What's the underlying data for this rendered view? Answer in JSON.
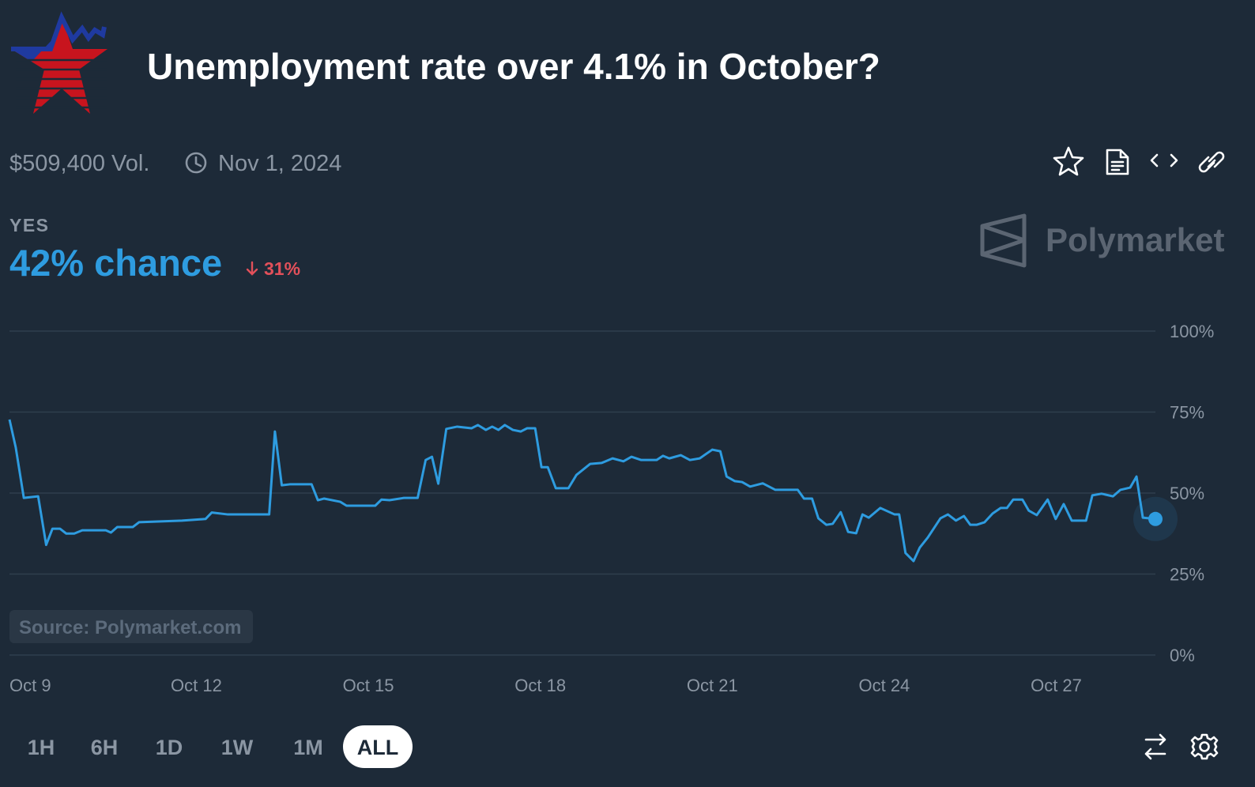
{
  "header": {
    "title": "Unemployment rate over 4.1% in October?",
    "volume": "$509,400 Vol.",
    "end_date": "Nov 1, 2024",
    "outcome": "YES",
    "change": "31%",
    "brand": "Polymarket",
    "source": "Source: Polymarket.com"
  },
  "chart_data": {
    "type": "line",
    "color": "#2e9ce0",
    "grid": true,
    "current": {
      "value": 42,
      "label": "42% chance"
    },
    "xlim": [
      8.74,
      28.73
    ],
    "ylim": [
      0,
      100
    ],
    "xticks": [
      {
        "value": 9,
        "label": "Oct 9"
      },
      {
        "value": 12,
        "label": "Oct 12"
      },
      {
        "value": 15,
        "label": "Oct 15"
      },
      {
        "value": 18,
        "label": "Oct 18"
      },
      {
        "value": 21,
        "label": "Oct 21"
      },
      {
        "value": 24,
        "label": "Oct 24"
      },
      {
        "value": 27,
        "label": "Oct 27"
      }
    ],
    "yticks": [
      {
        "value": 0,
        "label": "0%"
      },
      {
        "value": 25,
        "label": "25%"
      },
      {
        "value": 50,
        "label": "50%"
      },
      {
        "value": 75,
        "label": "75%"
      },
      {
        "value": 100,
        "label": "100%"
      }
    ],
    "x": [
      8.74,
      8.85,
      8.99,
      9.24,
      9.38,
      9.49,
      9.62,
      9.73,
      9.87,
      10.01,
      10.42,
      10.51,
      10.62,
      10.89,
      11.0,
      11.75,
      12.16,
      12.27,
      12.55,
      13.27,
      13.37,
      13.49,
      13.63,
      14.01,
      14.12,
      14.23,
      14.51,
      14.62,
      15.12,
      15.23,
      15.37,
      15.62,
      15.86,
      16.0,
      16.11,
      16.22,
      16.36,
      16.55,
      16.8,
      16.91,
      17.05,
      17.16,
      17.27,
      17.38,
      17.52,
      17.66,
      17.77,
      17.91,
      18.02,
      18.13,
      18.27,
      18.49,
      18.63,
      18.87,
      19.07,
      19.26,
      19.45,
      19.59,
      19.76,
      20.03,
      20.14,
      20.25,
      20.45,
      20.61,
      20.78,
      21.0,
      21.14,
      21.25,
      21.39,
      21.52,
      21.66,
      21.88,
      22.1,
      22.49,
      22.6,
      22.74,
      22.85,
      22.99,
      23.1,
      23.24,
      23.37,
      23.51,
      23.62,
      23.73,
      23.93,
      24.18,
      24.26,
      24.37,
      24.51,
      24.62,
      24.76,
      24.98,
      25.11,
      25.25,
      25.39,
      25.5,
      25.61,
      25.75,
      25.89,
      26.03,
      26.14,
      26.25,
      26.41,
      26.52,
      26.66,
      26.85,
      26.99,
      27.13,
      27.27,
      27.52,
      27.63,
      27.79,
      27.99,
      28.12,
      28.29,
      28.4,
      28.51,
      28.73
    ],
    "values": [
      72.7,
      64,
      48.5,
      49,
      34,
      39,
      39,
      37.5,
      37.5,
      38.5,
      38.5,
      37.8,
      39.5,
      39.5,
      41,
      41.5,
      42,
      44,
      43.4,
      43.4,
      69,
      52.4,
      52.7,
      52.7,
      47.8,
      48.3,
      47.3,
      46.1,
      46.1,
      48,
      47.8,
      48.5,
      48.5,
      60.2,
      61.2,
      52.9,
      69.8,
      70.5,
      70,
      71,
      69.5,
      70.5,
      69.5,
      71,
      69.5,
      69,
      70,
      70,
      58,
      58,
      51.5,
      51.5,
      55.6,
      59,
      59.3,
      60.7,
      59.8,
      61.2,
      60.2,
      60.2,
      61.5,
      60.7,
      61.7,
      60.2,
      60.7,
      63.4,
      62.9,
      55.1,
      53.7,
      53.4,
      52,
      53,
      51,
      51,
      48.3,
      48.3,
      42.2,
      40.2,
      40.5,
      44.1,
      38,
      37.6,
      43.4,
      42.4,
      45.4,
      43.4,
      43.4,
      31.5,
      29,
      33.2,
      36.3,
      42.2,
      43.4,
      41.5,
      42.9,
      40.2,
      40.2,
      41,
      43.7,
      45.4,
      45.4,
      48,
      48,
      44.6,
      43.2,
      48,
      42,
      46.6,
      41.5,
      41.5,
      49.3,
      49.8,
      49,
      51,
      51.7,
      55.1,
      42.4,
      42
    ]
  },
  "controls": {
    "ranges": [
      "1H",
      "6H",
      "1D",
      "1W",
      "1M",
      "ALL"
    ],
    "selected": "ALL"
  }
}
